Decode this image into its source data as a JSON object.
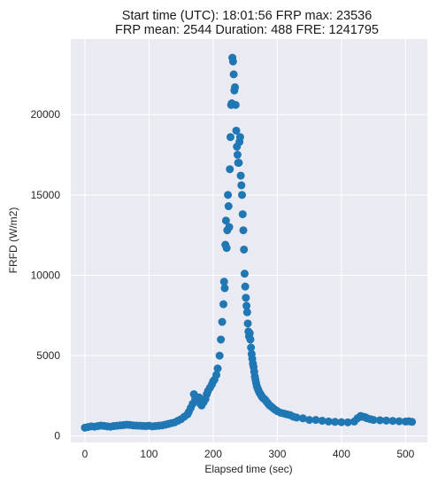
{
  "chart_data": {
    "type": "scatter",
    "title_line1": "Start time (UTC): 18:01:56 FRP max: 23536",
    "title_line2": "FRP mean: 2544 Duration: 488 FRE: 1241795",
    "xlabel": "Elapsed time (sec)",
    "ylabel": "FRFD (W/m2)",
    "xlim": [
      -22,
      534
    ],
    "ylim": [
      -400,
      24700
    ],
    "xticks": [
      0,
      100,
      200,
      300,
      400,
      500
    ],
    "yticks": [
      0,
      5000,
      10000,
      15000,
      20000
    ],
    "grid": true,
    "background": "#eaeaf2",
    "marker_color": "#1f77b4",
    "series": [
      {
        "x": [
          0,
          5,
          10,
          15,
          20,
          25,
          30,
          35,
          40,
          45,
          50,
          55,
          60,
          65,
          70,
          75,
          80,
          85,
          90,
          95,
          100,
          105,
          110,
          115,
          120,
          125,
          130,
          135,
          140,
          145,
          150,
          155,
          160,
          162,
          165,
          168,
          170,
          172,
          175,
          178,
          180,
          182,
          185,
          188,
          190,
          192,
          195,
          198,
          200,
          202,
          205,
          207,
          210,
          212,
          214,
          216,
          217,
          218,
          219,
          220,
          221,
          222,
          223,
          224,
          225,
          226,
          227,
          228,
          229,
          230,
          231,
          232,
          233,
          234,
          235,
          236,
          237,
          238,
          239,
          240,
          241,
          242,
          243,
          244,
          245,
          246,
          247,
          248,
          249,
          250,
          251,
          252,
          253,
          254,
          255,
          256,
          257,
          258,
          259,
          260,
          261,
          262,
          263,
          264,
          265,
          266,
          267,
          268,
          269,
          270,
          271,
          272,
          273,
          274,
          275,
          276,
          277,
          278,
          280,
          282,
          284,
          286,
          288,
          290,
          293,
          296,
          300,
          305,
          310,
          315,
          320,
          325,
          330,
          340,
          350,
          360,
          370,
          380,
          390,
          400,
          410,
          420,
          425,
          430,
          432,
          434,
          436,
          438,
          440,
          445,
          450,
          460,
          470,
          480,
          490,
          500,
          505,
          510
        ],
        "y": [
          520,
          560,
          600,
          580,
          620,
          650,
          630,
          600,
          580,
          620,
          640,
          660,
          680,
          700,
          690,
          660,
          650,
          640,
          630,
          620,
          640,
          600,
          620,
          640,
          660,
          700,
          750,
          800,
          850,
          950,
          1050,
          1200,
          1350,
          1500,
          1750,
          2000,
          2600,
          2300,
          2200,
          2400,
          2000,
          1900,
          2100,
          2300,
          2600,
          2800,
          3000,
          3200,
          3400,
          3500,
          3800,
          4200,
          5000,
          6000,
          7100,
          8200,
          9600,
          9200,
          11900,
          13400,
          11700,
          12800,
          15000,
          14300,
          13000,
          16600,
          18600,
          20600,
          20700,
          23536,
          23300,
          22500,
          21500,
          21700,
          20600,
          19000,
          18000,
          17500,
          17000,
          17000,
          18300,
          18600,
          16200,
          15600,
          15000,
          13800,
          12800,
          11600,
          10100,
          9300,
          8600,
          8100,
          7700,
          7000,
          6500,
          6200,
          6400,
          6000,
          5500,
          5100,
          4800,
          4500,
          4300,
          4000,
          3700,
          3500,
          3300,
          3100,
          3000,
          2900,
          2800,
          2700,
          2650,
          2600,
          2500,
          2450,
          2400,
          2350,
          2300,
          2200,
          2100,
          2000,
          1900,
          1850,
          1750,
          1650,
          1550,
          1450,
          1400,
          1350,
          1300,
          1200,
          1150,
          1100,
          1000,
          1000,
          950,
          900,
          880,
          860,
          850,
          900,
          1100,
          1250,
          1200,
          1200,
          1180,
          1150,
          1100,
          1050,
          1000,
          980,
          960,
          940,
          920,
          900,
          920,
          880
        ]
      }
    ]
  }
}
